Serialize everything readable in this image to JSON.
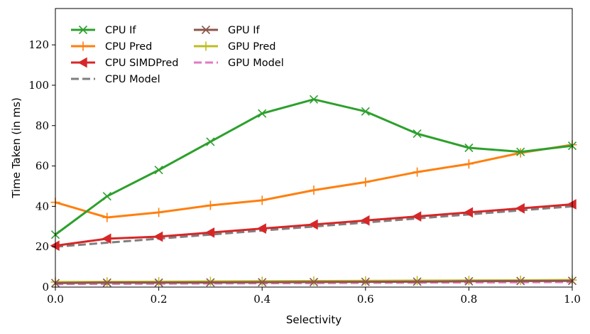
{
  "chart_data": {
    "type": "line",
    "title": "",
    "xlabel": "Selectivity",
    "ylabel": "Time Taken (in ms)",
    "xlim": [
      0.0,
      1.0
    ],
    "ylim": [
      0,
      138
    ],
    "xticks": [
      0.0,
      0.2,
      0.4,
      0.6,
      0.8,
      1.0
    ],
    "xtick_labels": [
      "0.0",
      "0.2",
      "0.4",
      "0.6",
      "0.8",
      "1.0"
    ],
    "yticks": [
      0,
      20,
      40,
      60,
      80,
      100,
      120
    ],
    "ytick_labels": [
      "0",
      "20",
      "40",
      "60",
      "80",
      "100",
      "120"
    ],
    "grid": false,
    "legend_position": "top-left",
    "x": [
      0.0,
      0.1,
      0.2,
      0.3,
      0.4,
      0.5,
      0.6,
      0.7,
      0.8,
      0.9,
      1.0
    ],
    "series": [
      {
        "name": "CPU If",
        "color": "#2ca02c",
        "marker": "x",
        "dashed": false,
        "values": [
          26,
          45,
          58,
          72,
          86,
          93,
          87,
          76,
          69,
          67,
          70
        ]
      },
      {
        "name": "CPU Pred",
        "color": "#ff7f0e",
        "marker": "plus",
        "dashed": false,
        "values": [
          42,
          34.5,
          37,
          40.5,
          43,
          48,
          52,
          57,
          61,
          66.5,
          70.5
        ]
      },
      {
        "name": "CPU SIMDPred",
        "color": "#d62728",
        "marker": "triangle-left",
        "dashed": false,
        "values": [
          20.5,
          24,
          25,
          27,
          29,
          31,
          33,
          35,
          37,
          39,
          41
        ]
      },
      {
        "name": "CPU Model",
        "color": "#7f7f7f",
        "marker": "none",
        "dashed": true,
        "values": [
          20,
          22,
          24,
          26,
          28,
          30,
          32,
          34,
          36,
          38,
          40
        ]
      },
      {
        "name": "GPU If",
        "color": "#8c564b",
        "marker": "x",
        "dashed": false,
        "values": [
          2,
          2.2,
          2.2,
          2.3,
          2.4,
          2.5,
          2.6,
          2.7,
          2.9,
          3.0,
          3.1
        ]
      },
      {
        "name": "GPU Pred",
        "color": "#bcbd22",
        "marker": "plus",
        "dashed": false,
        "values": [
          2.5,
          2.6,
          2.7,
          2.8,
          2.9,
          3.0,
          3.1,
          3.2,
          3.3,
          3.4,
          3.5
        ]
      },
      {
        "name": "GPU Model",
        "color": "#e377c2",
        "marker": "none",
        "dashed": true,
        "values": [
          1.5,
          1.6,
          1.7,
          1.8,
          1.9,
          2.0,
          2.1,
          2.2,
          2.3,
          2.4,
          2.5
        ]
      }
    ]
  }
}
